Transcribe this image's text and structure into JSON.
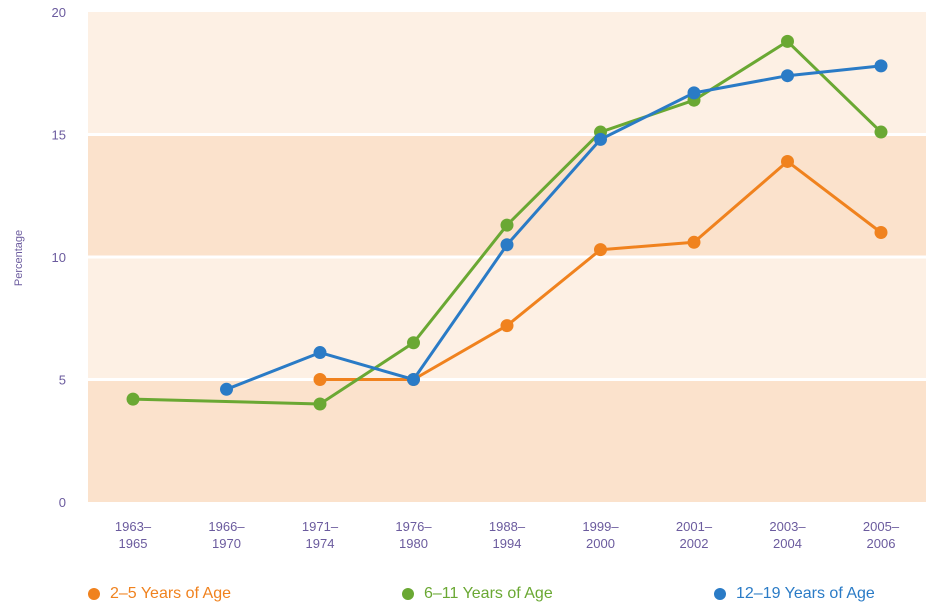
{
  "chart_data": {
    "type": "line",
    "ylabel": "Percentage",
    "ylim": [
      0,
      20
    ],
    "yticks": [
      0,
      5,
      10,
      15,
      20
    ],
    "categories": [
      [
        "1963–",
        "1965"
      ],
      [
        "1966–",
        "1970"
      ],
      [
        "1971–",
        "1974"
      ],
      [
        "1976–",
        "1980"
      ],
      [
        "1988–",
        "1994"
      ],
      [
        "1999–",
        "2000"
      ],
      [
        "2001–",
        "2002"
      ],
      [
        "2003–",
        "2004"
      ],
      [
        "2005–",
        "2006"
      ]
    ],
    "grid": true,
    "legend_position": "bottom",
    "series": [
      {
        "name": "2–5 Years of Age",
        "color": "#f0821e",
        "values": [
          null,
          null,
          5.0,
          5.0,
          7.2,
          10.3,
          10.6,
          13.9,
          11.0
        ]
      },
      {
        "name": "6–11 Years of Age",
        "color": "#6aa833",
        "values": [
          4.2,
          null,
          4.0,
          6.5,
          11.3,
          15.1,
          16.4,
          18.8,
          15.1
        ]
      },
      {
        "name": "12–19 Years of Age",
        "color": "#2a7bc6",
        "values": [
          null,
          4.6,
          6.1,
          5.0,
          10.5,
          14.8,
          16.7,
          17.4,
          17.8
        ]
      }
    ]
  }
}
